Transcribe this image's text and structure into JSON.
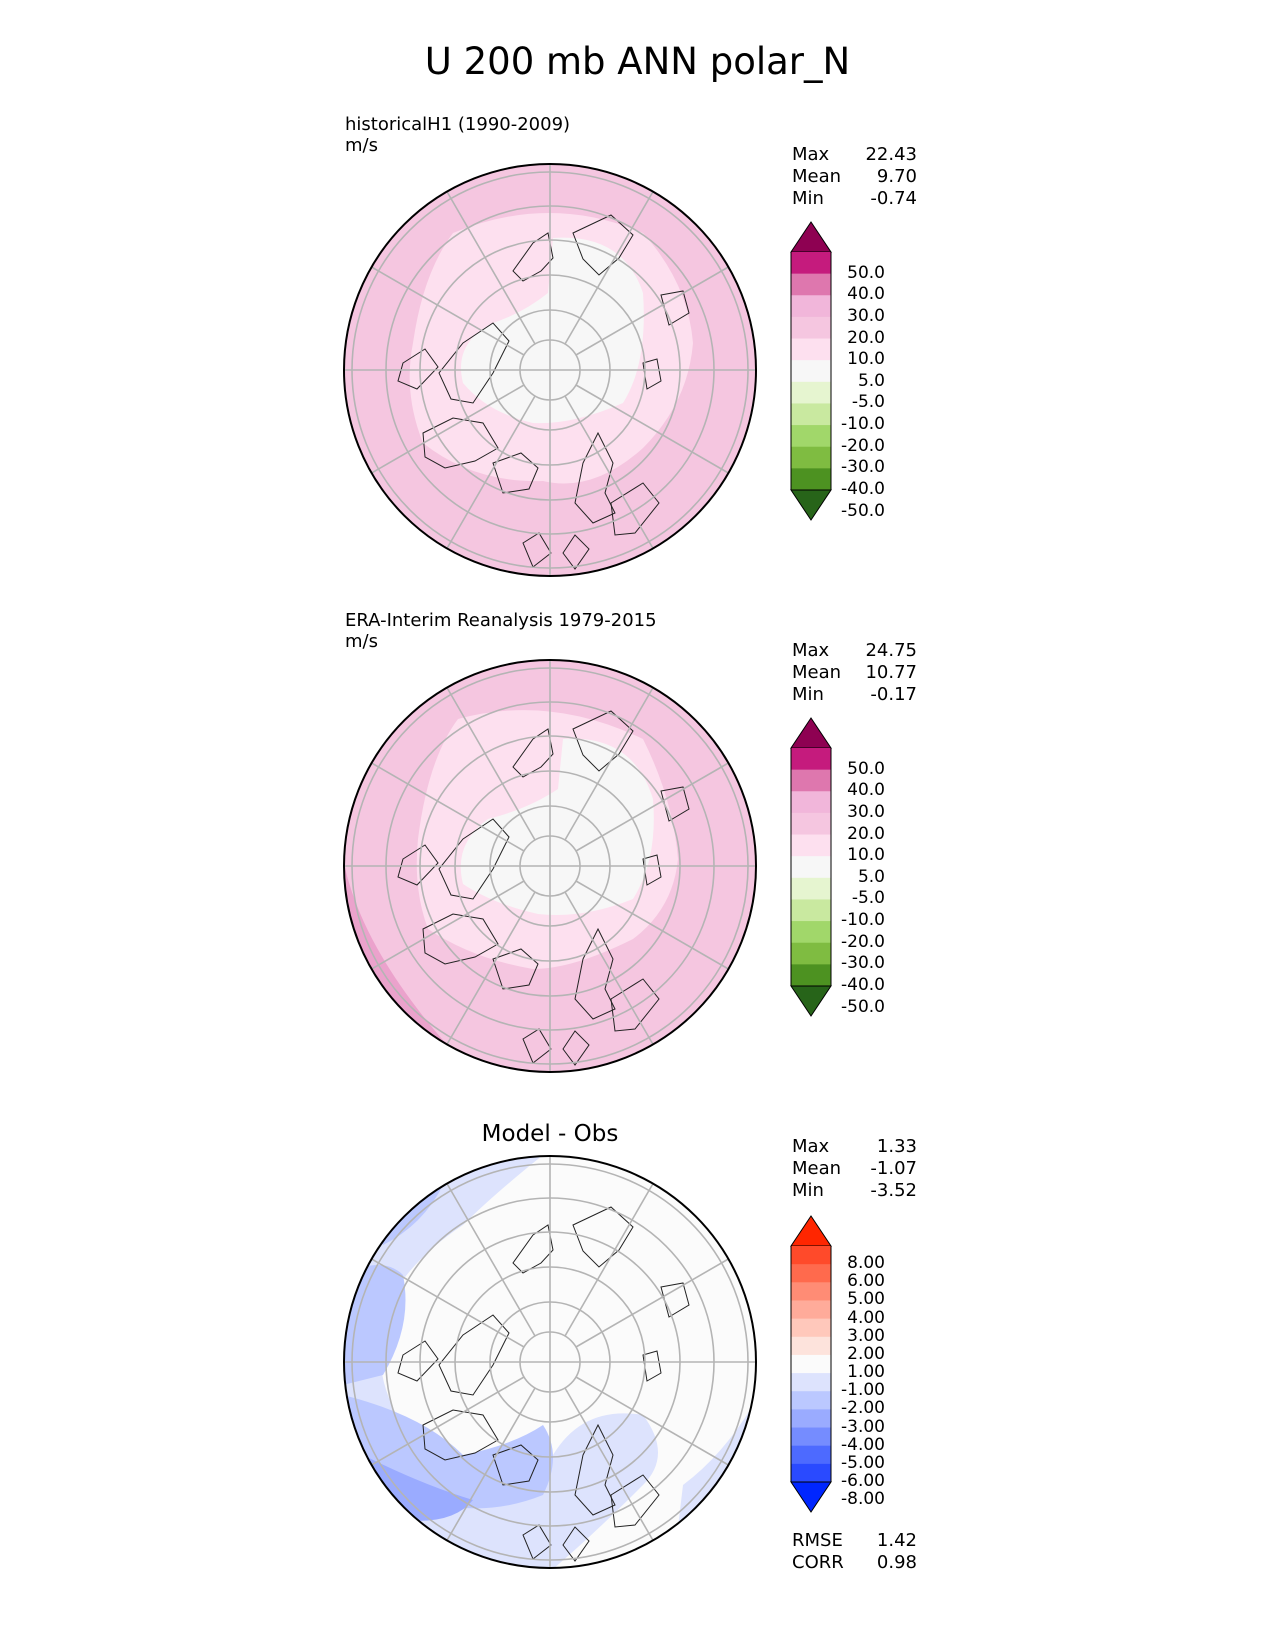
{
  "title": "U 200 mb ANN polar_N",
  "panels": [
    {
      "id": "test",
      "label": "historicalH1 (1990-2009)",
      "units": "m/s",
      "stats": [
        {
          "name": "Max",
          "value": "22.43"
        },
        {
          "name": "Mean",
          "value": "9.70"
        },
        {
          "name": "Min",
          "value": "-0.74"
        }
      ],
      "colorbar": {
        "ticks": [
          "50.0",
          "40.0",
          "30.0",
          "20.0",
          "10.0",
          "5.0",
          "-5.0",
          "-10.0",
          "-20.0",
          "-30.0",
          "-40.0",
          "-50.0"
        ],
        "colors": [
          "#8e0152",
          "#c51b7d",
          "#de77ae",
          "#f1b6da",
          "#f5c6e0",
          "#fde0ef",
          "#f7f7f7",
          "#e6f5d0",
          "#c9e9a0",
          "#a1d76a",
          "#7fbc41",
          "#4d9221",
          "#276419"
        ]
      }
    },
    {
      "id": "ref",
      "label": "ERA-Interim Reanalysis 1979-2015",
      "units": "m/s",
      "stats": [
        {
          "name": "Max",
          "value": "24.75"
        },
        {
          "name": "Mean",
          "value": "10.77"
        },
        {
          "name": "Min",
          "value": "-0.17"
        }
      ],
      "colorbar": {
        "ticks": [
          "50.0",
          "40.0",
          "30.0",
          "20.0",
          "10.0",
          "5.0",
          "-5.0",
          "-10.0",
          "-20.0",
          "-30.0",
          "-40.0",
          "-50.0"
        ],
        "colors": [
          "#8e0152",
          "#c51b7d",
          "#de77ae",
          "#f1b6da",
          "#f5c6e0",
          "#fde0ef",
          "#f7f7f7",
          "#e6f5d0",
          "#c9e9a0",
          "#a1d76a",
          "#7fbc41",
          "#4d9221",
          "#276419"
        ]
      }
    },
    {
      "id": "diff",
      "title": "Model - Obs",
      "stats": [
        {
          "name": "Max",
          "value": "1.33"
        },
        {
          "name": "Mean",
          "value": "-1.07"
        },
        {
          "name": "Min",
          "value": "-3.52"
        }
      ],
      "extra_stats": [
        {
          "name": "RMSE",
          "value": "1.42"
        },
        {
          "name": "CORR",
          "value": "0.98"
        }
      ],
      "colorbar": {
        "ticks": [
          "8.00",
          "6.00",
          "5.00",
          "4.00",
          "3.00",
          "2.00",
          "1.00",
          "-1.00",
          "-2.00",
          "-3.00",
          "-4.00",
          "-5.00",
          "-6.00",
          "-8.00"
        ],
        "colors": [
          "#ff2600",
          "#ff4a2a",
          "#ff6a4d",
          "#ff8c75",
          "#ffab9a",
          "#ffc8bb",
          "#fde3dc",
          "#fbfbfb",
          "#dde3fd",
          "#bbc8ff",
          "#9aabff",
          "#758cff",
          "#4d6aff",
          "#2a4aff",
          "#0026ff"
        ]
      }
    }
  ],
  "chart_data": [
    {
      "type": "heatmap",
      "title": "historicalH1 (1990-2009)",
      "units": "m/s",
      "projection": "north polar stereographic",
      "field": "U 200 mb ANN",
      "max": 22.43,
      "mean": 9.7,
      "min": -0.74,
      "levels": [
        -50,
        -40,
        -30,
        -20,
        -10,
        -5,
        5,
        10,
        20,
        30,
        40,
        50
      ],
      "extend": "both"
    },
    {
      "type": "heatmap",
      "title": "ERA-Interim Reanalysis 1979-2015",
      "units": "m/s",
      "projection": "north polar stereographic",
      "field": "U 200 mb ANN",
      "max": 24.75,
      "mean": 10.77,
      "min": -0.17,
      "levels": [
        -50,
        -40,
        -30,
        -20,
        -10,
        -5,
        5,
        10,
        20,
        30,
        40,
        50
      ],
      "extend": "both"
    },
    {
      "type": "heatmap",
      "title": "Model - Obs",
      "projection": "north polar stereographic",
      "max": 1.33,
      "mean": -1.07,
      "min": -3.52,
      "rmse": 1.42,
      "corr": 0.98,
      "levels": [
        -8,
        -6,
        -5,
        -4,
        -3,
        -2,
        -1,
        1,
        2,
        3,
        4,
        5,
        6,
        8
      ],
      "extend": "both"
    }
  ]
}
